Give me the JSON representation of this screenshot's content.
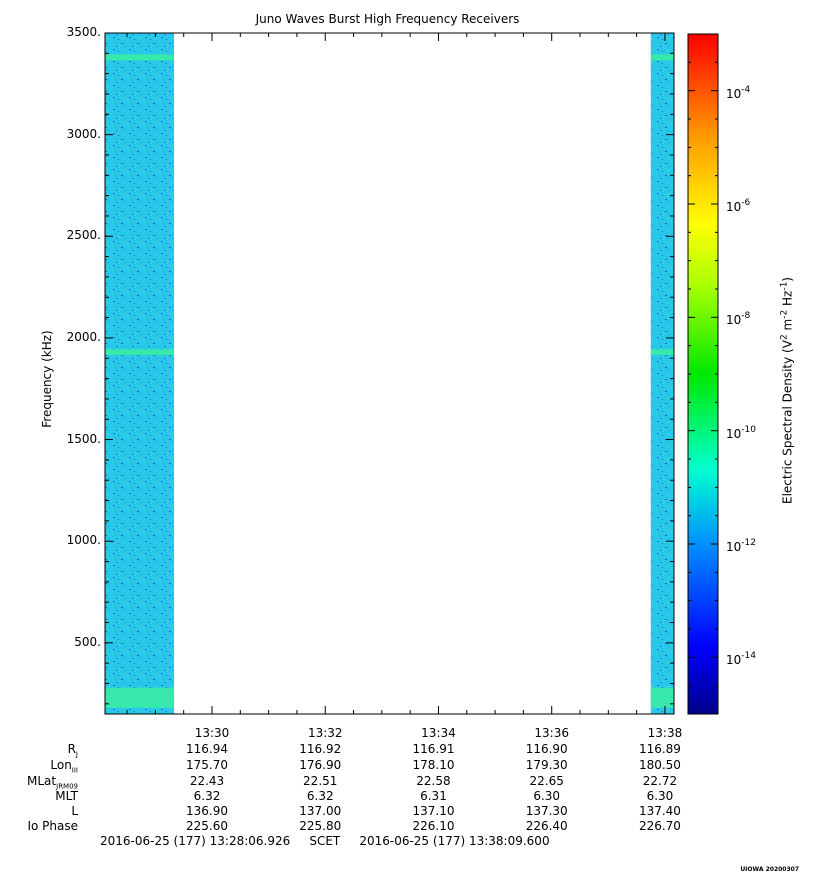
{
  "chart_data": {
    "type": "heatmap",
    "title": "Juno Waves Burst High Frequency Receivers",
    "ylabel": "Frequency (kHz)",
    "ylim": [
      150,
      3500
    ],
    "y_ticks": [
      "500.",
      "1000.",
      "1500.",
      "2000.",
      "2500.",
      "3000.",
      "3500."
    ],
    "y_tick_values": [
      500,
      1000,
      1500,
      2000,
      2500,
      3000,
      3500
    ],
    "x_ticks": [
      "13:30",
      "13:32",
      "13:34",
      "13:36",
      "13:38"
    ],
    "x_tick_values_min": [
      30,
      32,
      34,
      36,
      38
    ],
    "xlim_min": [
      28.11,
      38.16
    ],
    "data_blocks": [
      {
        "start": "13:28:06.926",
        "end": "13:29:20"
      },
      {
        "start": "13:37:45",
        "end": "13:38:09.600"
      }
    ],
    "data_start_min": [
      28.11,
      37.75
    ],
    "data_end_min": [
      29.33,
      38.16
    ],
    "emission_bands_khz": [
      230,
      1930,
      3380
    ],
    "colorbar": {
      "label": "Electric Spectral Density (V2 m-2 Hz-1)",
      "label_parts": [
        "Electric Spectral Density (V",
        "2",
        " m",
        "-2",
        " Hz",
        "-1",
        ")"
      ],
      "scale": "log",
      "range_exp": [
        -15,
        -3
      ],
      "ticks": [
        {
          "base": "10",
          "exp": "-4"
        },
        {
          "base": "10",
          "exp": "-6"
        },
        {
          "base": "10",
          "exp": "-8"
        },
        {
          "base": "10",
          "exp": "-10"
        },
        {
          "base": "10",
          "exp": "-12"
        },
        {
          "base": "10",
          "exp": "-14"
        }
      ],
      "tick_exps": [
        -4,
        -6,
        -8,
        -10,
        -12,
        -14
      ]
    },
    "ephemeris": {
      "rows": [
        {
          "label": "R",
          "sub": "J",
          "values": [
            "116.94",
            "116.92",
            "116.91",
            "116.90",
            "116.89"
          ]
        },
        {
          "label": "Lon",
          "sub": "III",
          "values": [
            "175.70",
            "176.90",
            "178.10",
            "179.30",
            "180.50"
          ]
        },
        {
          "label": "MLat",
          "sub": "JRM09",
          "values": [
            "22.43",
            "22.51",
            "22.58",
            "22.65",
            "22.72"
          ]
        },
        {
          "label": "MLT",
          "sub": "",
          "values": [
            "6.32",
            "6.32",
            "6.31",
            "6.30",
            "6.30"
          ]
        },
        {
          "label": "L",
          "sub": "",
          "values": [
            "136.90",
            "137.00",
            "137.10",
            "137.30",
            "137.40"
          ]
        },
        {
          "label": "Io Phase",
          "sub": "",
          "values": [
            "225.60",
            "225.80",
            "226.10",
            "226.40",
            "226.70"
          ]
        }
      ]
    },
    "footer": {
      "start": "2016-06-25 (177) 13:28:06.926",
      "mid": "SCET",
      "end": "2016-06-25 (177) 13:38:09.600"
    },
    "stamp": "UIOWA 20200307"
  }
}
